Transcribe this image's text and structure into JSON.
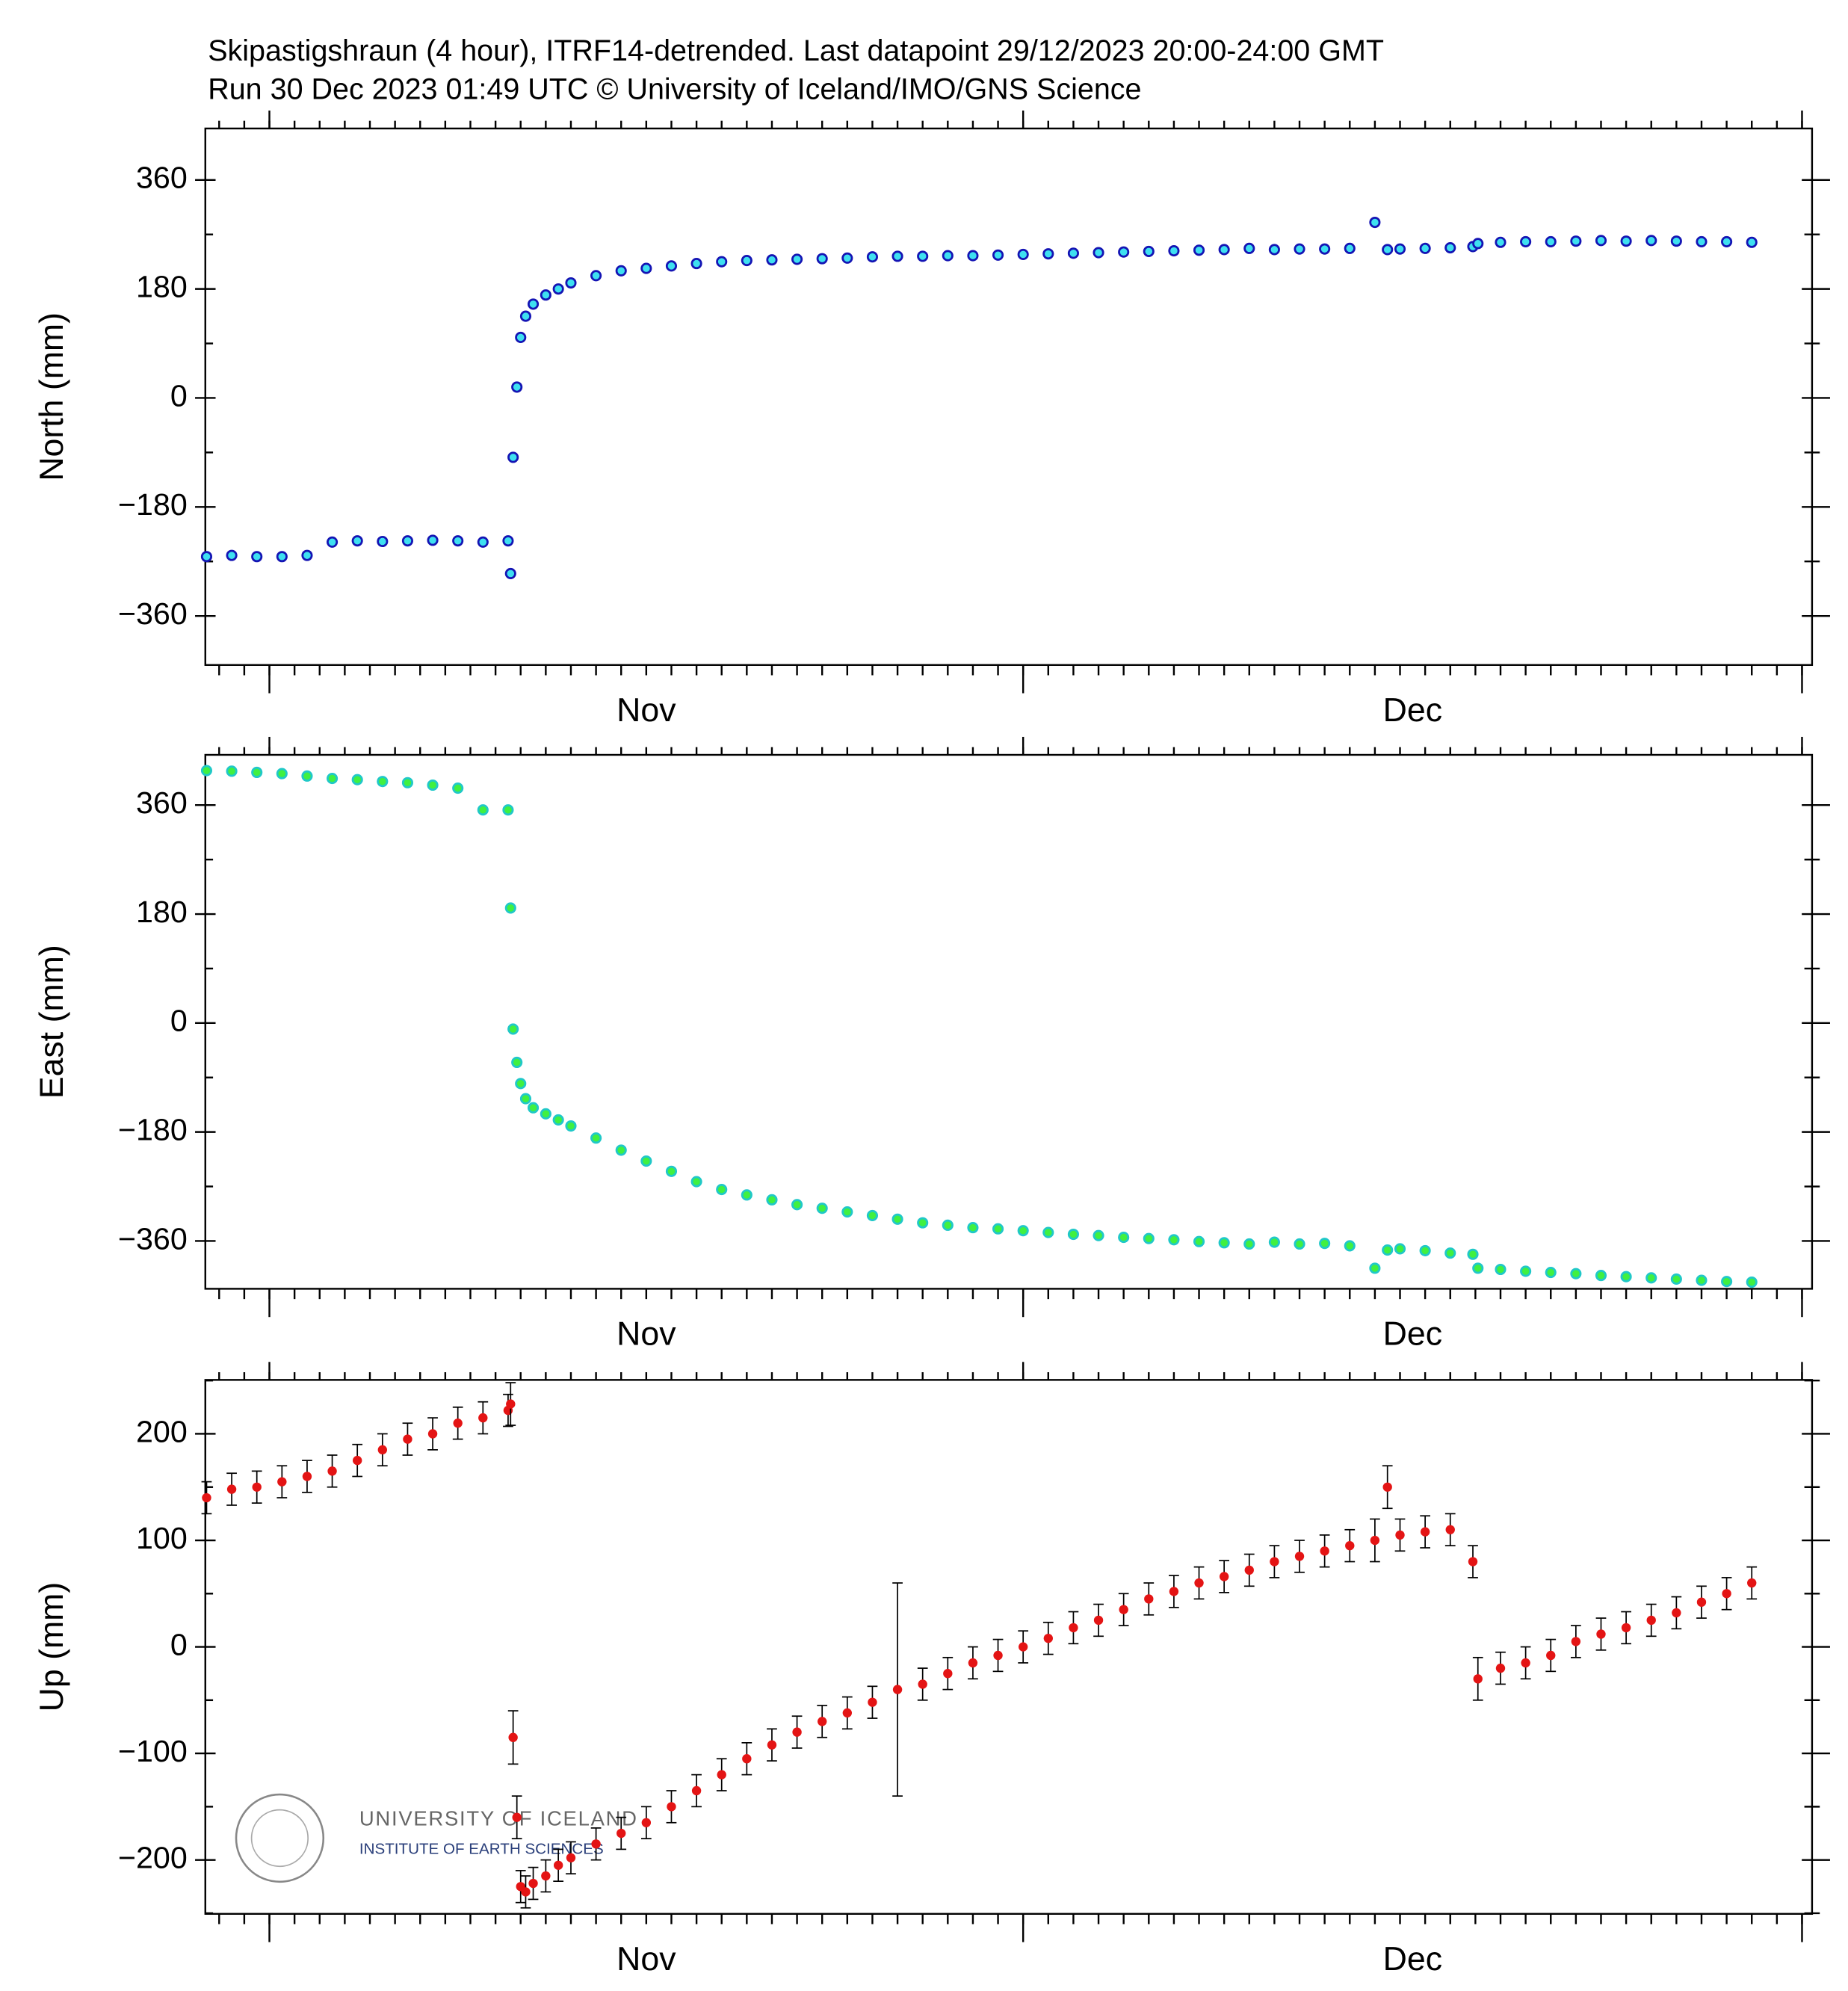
{
  "header": {
    "line1": "Skipastigshraun (4 hour), ITRF14-detrended.  Last datapoint 29/12/2023 20:00-24:00 GMT",
    "line2": "Run 30 Dec 2023 01:49 UTC     © University of Iceland/IMO/GNS Science"
  },
  "logo": {
    "name": "UNIVERSITY OF ICELAND",
    "unit": "INSTITUTE OF EARTH SCIENCES"
  },
  "chart_data": [
    {
      "type": "scatter",
      "ylabel": "North (mm)",
      "color": "#3ee0f0",
      "edge_color": "#1414b4",
      "xlim": [
        -2.55,
        61.4
      ],
      "xticks": [
        {
          "value": 15,
          "label": "Nov"
        },
        {
          "value": 45.5,
          "label": "Dec"
        }
      ],
      "month_starts": [
        0,
        30,
        61
      ],
      "ylim": [
        -441,
        445
      ],
      "yticks": [
        {
          "value": -360,
          "label": "−360"
        },
        {
          "value": -180,
          "label": "−180"
        },
        0,
        180,
        360
      ],
      "x": [
        -2.5,
        -1.5,
        -0.5,
        0.5,
        1.5,
        2.5,
        3.5,
        4.5,
        5.5,
        6.5,
        7.5,
        8.5,
        9.5,
        9.6,
        9.7,
        9.85,
        10,
        10.2,
        10.5,
        11,
        11.5,
        12,
        13,
        14,
        15,
        16,
        17,
        18,
        19,
        20,
        21,
        22,
        23,
        24,
        25,
        26,
        27,
        28,
        29,
        30,
        31,
        32,
        33,
        34,
        35,
        36,
        37,
        38,
        39,
        40,
        41,
        42,
        43,
        44,
        44.5,
        45,
        46,
        47,
        47.9,
        48.1,
        49,
        50,
        51,
        52,
        53,
        54,
        55,
        56,
        57,
        58,
        59
      ],
      "values": [
        -262,
        -260,
        -262,
        -262,
        -260,
        -238,
        -236,
        -237,
        -236,
        -235,
        -236,
        -238,
        -236,
        -290,
        -98,
        18,
        100,
        135,
        155,
        170,
        180,
        190,
        202,
        210,
        214,
        218,
        222,
        225,
        227,
        228,
        229,
        230,
        231,
        233,
        234,
        234,
        235,
        235,
        236,
        237,
        238,
        239,
        240,
        241,
        242,
        243,
        244,
        245,
        247,
        245,
        246,
        246,
        247,
        290,
        245,
        246,
        247,
        248,
        250,
        255,
        257,
        258,
        258,
        259,
        260,
        259,
        260,
        259,
        258,
        258,
        257
      ]
    },
    {
      "type": "scatter",
      "ylabel": "East (mm)",
      "color": "#40f040",
      "edge_color": "#20c8c8",
      "xlim": [
        -2.55,
        61.4
      ],
      "xticks": [
        {
          "value": 15,
          "label": "Nov"
        },
        {
          "value": 45.5,
          "label": "Dec"
        }
      ],
      "month_starts": [
        0,
        30,
        61
      ],
      "ylim": [
        -439,
        443
      ],
      "yticks": [
        {
          "value": -360,
          "label": "−360"
        },
        {
          "value": -180,
          "label": "−180"
        },
        0,
        180,
        360
      ],
      "x": [
        -2.5,
        -1.5,
        -0.5,
        0.5,
        1.5,
        2.5,
        3.5,
        4.5,
        5.5,
        6.5,
        7.5,
        8.5,
        9.5,
        9.6,
        9.7,
        9.85,
        10,
        10.2,
        10.5,
        11,
        11.5,
        12,
        13,
        14,
        15,
        16,
        17,
        18,
        19,
        20,
        21,
        22,
        23,
        24,
        25,
        26,
        27,
        28,
        29,
        30,
        31,
        32,
        33,
        34,
        35,
        36,
        37,
        38,
        39,
        40,
        41,
        42,
        43,
        44,
        44.5,
        45,
        46,
        47,
        47.9,
        48.1,
        49,
        50,
        51,
        52,
        53,
        54,
        55,
        56,
        57,
        58,
        59
      ],
      "values": [
        417,
        416,
        414,
        412,
        408,
        404,
        402,
        399,
        397,
        393,
        388,
        352,
        352,
        190,
        -10,
        -65,
        -100,
        -125,
        -140,
        -150,
        -160,
        -170,
        -190,
        -210,
        -228,
        -245,
        -262,
        -275,
        -284,
        -292,
        -300,
        -306,
        -312,
        -318,
        -324,
        -330,
        -334,
        -338,
        -340,
        -343,
        -346,
        -349,
        -351,
        -354,
        -356,
        -358,
        -361,
        -363,
        -365,
        -362,
        -365,
        -364,
        -368,
        -405,
        -375,
        -373,
        -376,
        -380,
        -382,
        -405,
        -407,
        -410,
        -412,
        -414,
        -417,
        -419,
        -421,
        -423,
        -425,
        -427,
        -428
      ]
    },
    {
      "type": "errorbar",
      "ylabel": "Up (mm)",
      "color": "#e41414",
      "edge_color": "#000000",
      "xlim": [
        -2.55,
        61.4
      ],
      "xticks": [
        {
          "value": 15,
          "label": "Nov"
        },
        {
          "value": 45.5,
          "label": "Dec"
        }
      ],
      "month_starts": [
        0,
        30,
        61
      ],
      "ylim": [
        -250.6,
        250.6
      ],
      "yticks": [
        {
          "value": -200,
          "label": "−200"
        },
        {
          "value": -100,
          "label": "−100"
        },
        0,
        100,
        200
      ],
      "x": [
        -2.5,
        -1.5,
        -0.5,
        0.5,
        1.5,
        2.5,
        3.5,
        4.5,
        5.5,
        6.5,
        7.5,
        8.5,
        9.5,
        9.6,
        9.7,
        9.85,
        10,
        10.2,
        10.5,
        11,
        11.5,
        12,
        13,
        14,
        15,
        16,
        17,
        18,
        19,
        20,
        21,
        22,
        23,
        24,
        25,
        26,
        27,
        28,
        29,
        30,
        31,
        32,
        33,
        34,
        35,
        36,
        37,
        38,
        39,
        40,
        41,
        42,
        43,
        44,
        44.5,
        45,
        46,
        47,
        47.9,
        48.1,
        49,
        50,
        51,
        52,
        53,
        54,
        55,
        56,
        57,
        58,
        59
      ],
      "values": [
        140,
        148,
        150,
        155,
        160,
        165,
        175,
        185,
        195,
        200,
        210,
        215,
        222,
        228,
        -85,
        -160,
        -225,
        -230,
        -222,
        -215,
        -205,
        -198,
        -185,
        -175,
        -165,
        -150,
        -135,
        -120,
        -105,
        -92,
        -80,
        -70,
        -62,
        -52,
        -40,
        -35,
        -25,
        -15,
        -8,
        0,
        8,
        18,
        25,
        35,
        45,
        52,
        60,
        66,
        72,
        80,
        85,
        90,
        95,
        100,
        150,
        105,
        108,
        110,
        80,
        -30,
        -20,
        -15,
        -8,
        5,
        12,
        18,
        25,
        32,
        42,
        50,
        60
      ],
      "errors": [
        15,
        15,
        15,
        15,
        15,
        15,
        15,
        15,
        15,
        15,
        15,
        15,
        15,
        20,
        25,
        20,
        15,
        15,
        15,
        15,
        15,
        15,
        15,
        15,
        15,
        15,
        15,
        15,
        15,
        15,
        15,
        15,
        15,
        15,
        100,
        15,
        15,
        15,
        15,
        15,
        15,
        15,
        15,
        15,
        15,
        15,
        15,
        15,
        15,
        15,
        15,
        15,
        15,
        20,
        20,
        15,
        15,
        15,
        15,
        20,
        15,
        15,
        15,
        15,
        15,
        15,
        15,
        15,
        15,
        15,
        15
      ]
    }
  ]
}
